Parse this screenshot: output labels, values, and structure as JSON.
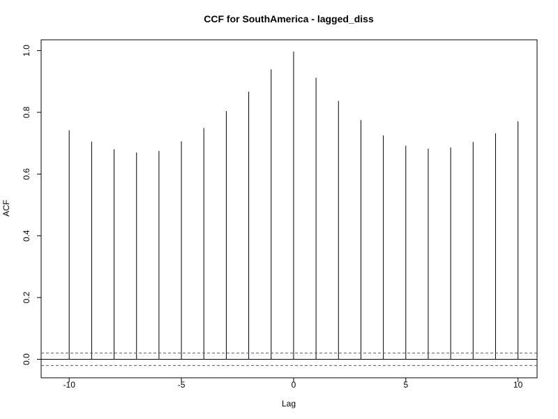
{
  "chart_data": {
    "type": "bar",
    "title": "CCF for SouthAmerica - lagged_diss",
    "xlabel": "Lag",
    "ylabel": "ACF",
    "x": [
      -10,
      -9,
      -8,
      -7,
      -6,
      -5,
      -4,
      -3,
      -2,
      -1,
      0,
      1,
      2,
      3,
      4,
      5,
      6,
      7,
      8,
      9,
      10
    ],
    "values": [
      0.742,
      0.705,
      0.68,
      0.67,
      0.675,
      0.706,
      0.749,
      0.804,
      0.867,
      0.939,
      0.997,
      0.912,
      0.837,
      0.775,
      0.725,
      0.692,
      0.682,
      0.686,
      0.704,
      0.732,
      0.771
    ],
    "xlim": [
      -11.25,
      10.85
    ],
    "ylim": [
      -0.06,
      1.035
    ],
    "x_ticks": [
      -10,
      -5,
      0,
      5,
      10
    ],
    "x_tick_labels": [
      "-10",
      "-5",
      "0",
      "5",
      "10"
    ],
    "y_ticks": [
      0.0,
      0.2,
      0.4,
      0.6,
      0.8,
      1.0
    ],
    "y_tick_labels": [
      "0.0",
      "0.2",
      "0.4",
      "0.6",
      "0.8",
      "1.0"
    ],
    "confidence_limits": [
      0.02,
      -0.02
    ],
    "grid": false,
    "legend": false,
    "colors": {
      "bars": "#000000",
      "confidence": "#3b4fd8",
      "axes": "#000000"
    }
  }
}
